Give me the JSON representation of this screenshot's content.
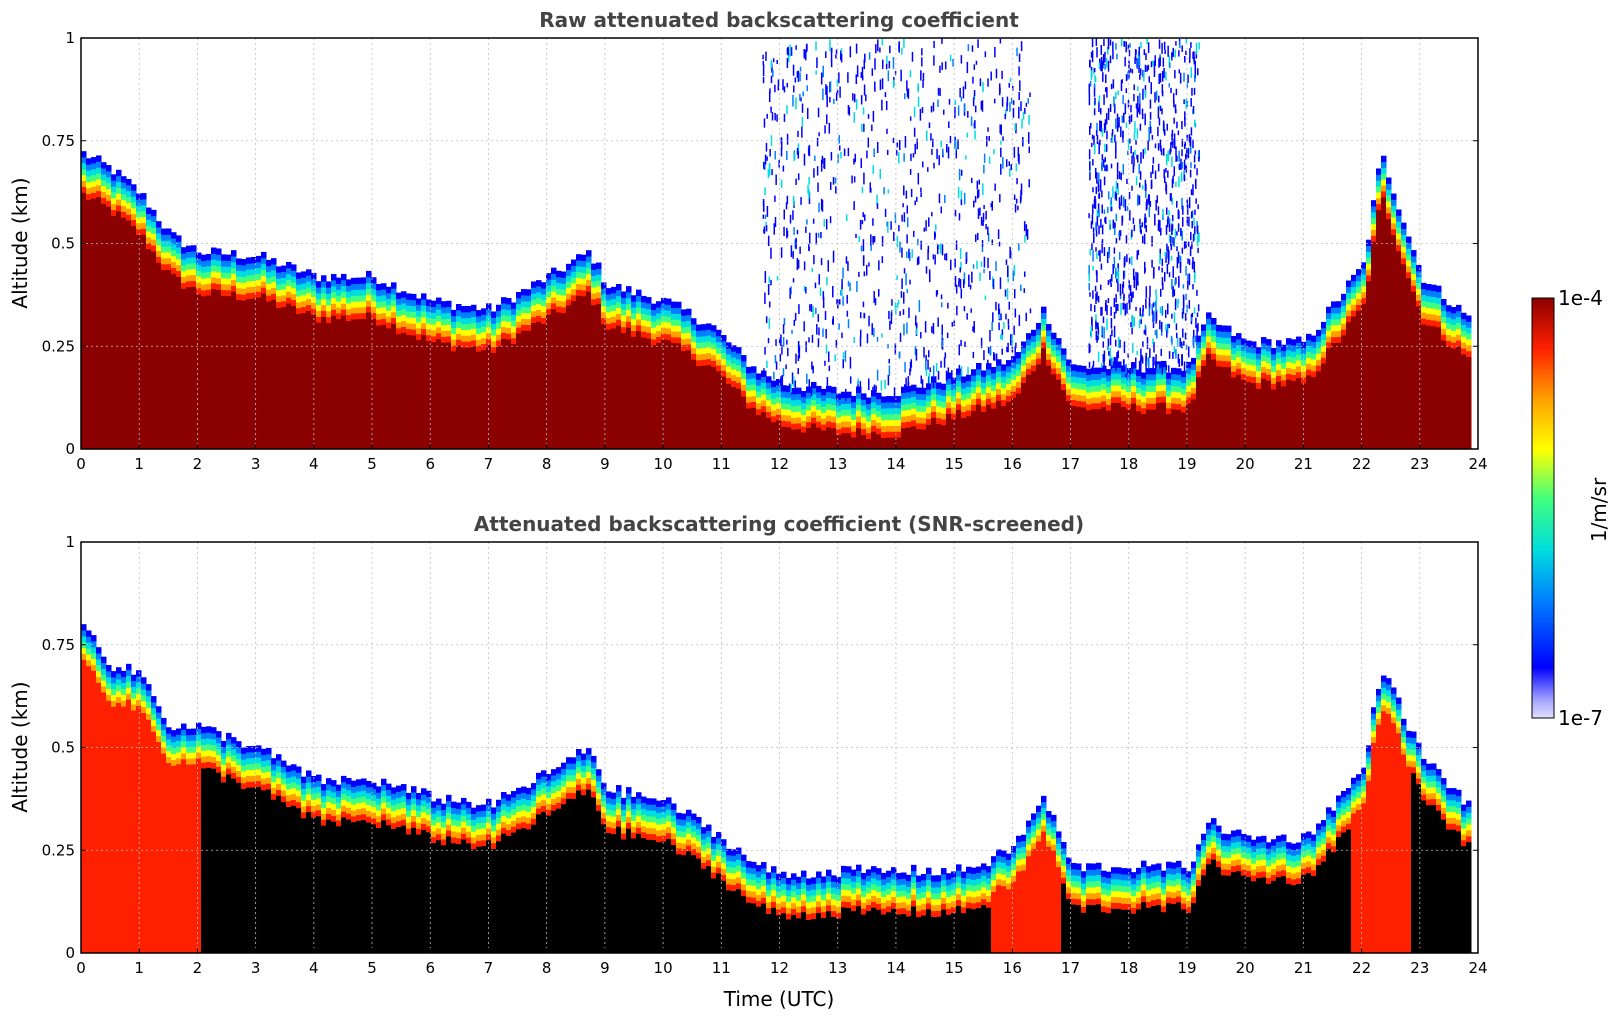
{
  "chart_data": [
    {
      "type": "heatmap",
      "title": "Raw attenuated backscattering coefficient",
      "ylabel": "Altitude (km)",
      "xlabel": "",
      "xlim": [
        0,
        24
      ],
      "ylim": [
        0,
        1
      ],
      "x_ticks": [
        "0",
        "1",
        "2",
        "3",
        "4",
        "5",
        "6",
        "7",
        "8",
        "9",
        "10",
        "11",
        "12",
        "13",
        "14",
        "15",
        "16",
        "17",
        "18",
        "19",
        "20",
        "21",
        "22",
        "23",
        "24"
      ],
      "y_ticks": [
        "0",
        "0.25",
        "0.5",
        "0.75",
        "1"
      ],
      "grid": true,
      "screened": false,
      "layer_top_km": {
        "time_utc": [
          0,
          0.5,
          1,
          1.5,
          2,
          3,
          4,
          5,
          6,
          7,
          8,
          8.7,
          9,
          10,
          10.8,
          11.5,
          12,
          13,
          14,
          15,
          15.5,
          16,
          16.5,
          17,
          18,
          19,
          19.3,
          20,
          21,
          22,
          22.3,
          23,
          23.8
        ],
        "top_km": [
          0.72,
          0.68,
          0.62,
          0.52,
          0.48,
          0.47,
          0.42,
          0.42,
          0.36,
          0.34,
          0.42,
          0.48,
          0.4,
          0.36,
          0.3,
          0.2,
          0.16,
          0.14,
          0.14,
          0.18,
          0.2,
          0.22,
          0.34,
          0.2,
          0.2,
          0.2,
          0.32,
          0.26,
          0.26,
          0.45,
          0.72,
          0.42,
          0.32
        ]
      },
      "noise_above_layer_utc": [
        [
          11.7,
          16.3
        ],
        [
          17.3,
          19.2
        ]
      ]
    },
    {
      "type": "heatmap",
      "title": "Attenuated backscattering coefficient (SNR-screened)",
      "ylabel": "Altitude (km)",
      "xlabel": "Time (UTC)",
      "xlim": [
        0,
        24
      ],
      "ylim": [
        0,
        1
      ],
      "x_ticks": [
        "0",
        "1",
        "2",
        "3",
        "4",
        "5",
        "6",
        "7",
        "8",
        "9",
        "10",
        "11",
        "12",
        "13",
        "14",
        "15",
        "16",
        "17",
        "18",
        "19",
        "20",
        "21",
        "22",
        "23",
        "24"
      ],
      "y_ticks": [
        "0",
        "0.25",
        "0.5",
        "0.75",
        "1"
      ],
      "grid": true,
      "screened": true,
      "layer_top_km": {
        "time_utc": [
          0,
          0.5,
          1,
          1.5,
          2,
          3,
          4,
          5,
          6,
          7,
          8,
          8.7,
          9,
          10,
          10.8,
          11.5,
          12,
          13,
          14,
          15,
          15.5,
          16,
          16.5,
          17,
          18,
          19,
          19.3,
          20,
          21,
          22,
          22.3,
          23,
          23.8
        ],
        "top_km": [
          0.8,
          0.7,
          0.68,
          0.55,
          0.55,
          0.5,
          0.42,
          0.42,
          0.38,
          0.36,
          0.44,
          0.5,
          0.4,
          0.37,
          0.3,
          0.22,
          0.19,
          0.2,
          0.2,
          0.2,
          0.22,
          0.26,
          0.38,
          0.21,
          0.21,
          0.21,
          0.32,
          0.28,
          0.28,
          0.45,
          0.7,
          0.48,
          0.36
        ]
      }
    }
  ],
  "colorbar": {
    "max_label": "1e-4",
    "min_label": "1e-7",
    "unit_label": "1/m/sr",
    "colors": [
      "#e0e0ff",
      "#a8a8ff",
      "#0000ff",
      "#0080ff",
      "#00dddd",
      "#40ff80",
      "#ffff00",
      "#ffa000",
      "#ff2000",
      "#8b0000"
    ]
  }
}
